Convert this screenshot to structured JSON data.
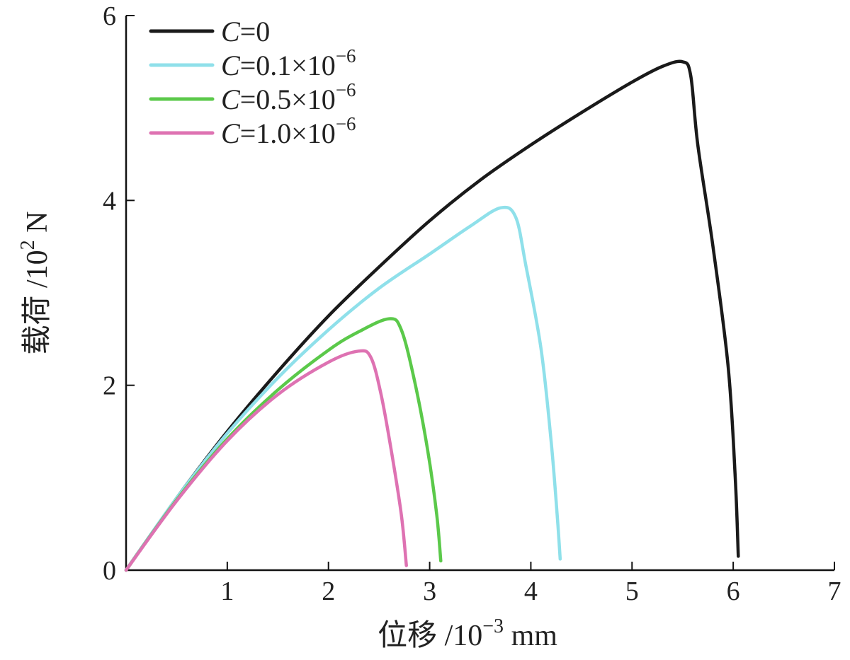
{
  "chart_data": {
    "type": "line",
    "xlabel": "位移 /10⁻³ mm",
    "ylabel": "载荷 /10² N",
    "xlim": [
      0,
      7
    ],
    "ylim": [
      0,
      6
    ],
    "xticks": [
      "1",
      "2",
      "3",
      "4",
      "5",
      "6",
      "7"
    ],
    "yticks": [
      "0",
      "2",
      "4",
      "6"
    ],
    "grid": false,
    "legend_position": "top-left",
    "series": [
      {
        "name": "C=0",
        "color": "#1a1a1a",
        "points": [
          [
            0,
            0
          ],
          [
            0.5,
            0.78
          ],
          [
            1,
            1.5
          ],
          [
            1.5,
            2.15
          ],
          [
            2,
            2.75
          ],
          [
            2.5,
            3.28
          ],
          [
            3,
            3.78
          ],
          [
            3.5,
            4.22
          ],
          [
            4,
            4.6
          ],
          [
            4.5,
            4.95
          ],
          [
            5,
            5.28
          ],
          [
            5.3,
            5.45
          ],
          [
            5.5,
            5.5
          ],
          [
            5.58,
            5.35
          ],
          [
            5.65,
            4.6
          ],
          [
            5.8,
            3.5
          ],
          [
            5.95,
            2.2
          ],
          [
            6.02,
            1.0
          ],
          [
            6.05,
            0.15
          ]
        ]
      },
      {
        "name": "C=0.1×10⁻⁶",
        "color": "#8fe0ea",
        "points": [
          [
            0,
            0
          ],
          [
            0.5,
            0.78
          ],
          [
            1,
            1.48
          ],
          [
            1.5,
            2.08
          ],
          [
            2,
            2.6
          ],
          [
            2.5,
            3.05
          ],
          [
            3,
            3.42
          ],
          [
            3.4,
            3.72
          ],
          [
            3.7,
            3.92
          ],
          [
            3.85,
            3.82
          ],
          [
            3.95,
            3.3
          ],
          [
            4.1,
            2.4
          ],
          [
            4.2,
            1.4
          ],
          [
            4.26,
            0.6
          ],
          [
            4.29,
            0.12
          ]
        ]
      },
      {
        "name": "C=0.5×10⁻⁶",
        "color": "#5bc94a",
        "points": [
          [
            0,
            0
          ],
          [
            0.5,
            0.76
          ],
          [
            1,
            1.42
          ],
          [
            1.5,
            1.95
          ],
          [
            2,
            2.38
          ],
          [
            2.3,
            2.58
          ],
          [
            2.6,
            2.72
          ],
          [
            2.72,
            2.6
          ],
          [
            2.85,
            2.05
          ],
          [
            2.98,
            1.3
          ],
          [
            3.07,
            0.6
          ],
          [
            3.11,
            0.1
          ]
        ]
      },
      {
        "name": "C=1.0×10⁻⁶",
        "color": "#de72b2",
        "points": [
          [
            0,
            0
          ],
          [
            0.5,
            0.75
          ],
          [
            1,
            1.4
          ],
          [
            1.5,
            1.9
          ],
          [
            2,
            2.25
          ],
          [
            2.3,
            2.37
          ],
          [
            2.42,
            2.3
          ],
          [
            2.52,
            1.9
          ],
          [
            2.62,
            1.3
          ],
          [
            2.72,
            0.6
          ],
          [
            2.77,
            0.05
          ]
        ]
      }
    ],
    "legend": [
      {
        "c": "C",
        "rest": "=0",
        "sup": ""
      },
      {
        "c": "C",
        "rest": "=0.1×10",
        "sup": "−6"
      },
      {
        "c": "C",
        "rest": "=0.5×10",
        "sup": "−6"
      },
      {
        "c": "C",
        "rest": "=1.0×10",
        "sup": "−6"
      }
    ],
    "axis_titles": {
      "x": {
        "main": "位移 /10",
        "sup": "−3",
        "tail": " mm"
      },
      "y": {
        "main": "载荷 /10",
        "sup": "2",
        "tail": " N"
      }
    }
  }
}
